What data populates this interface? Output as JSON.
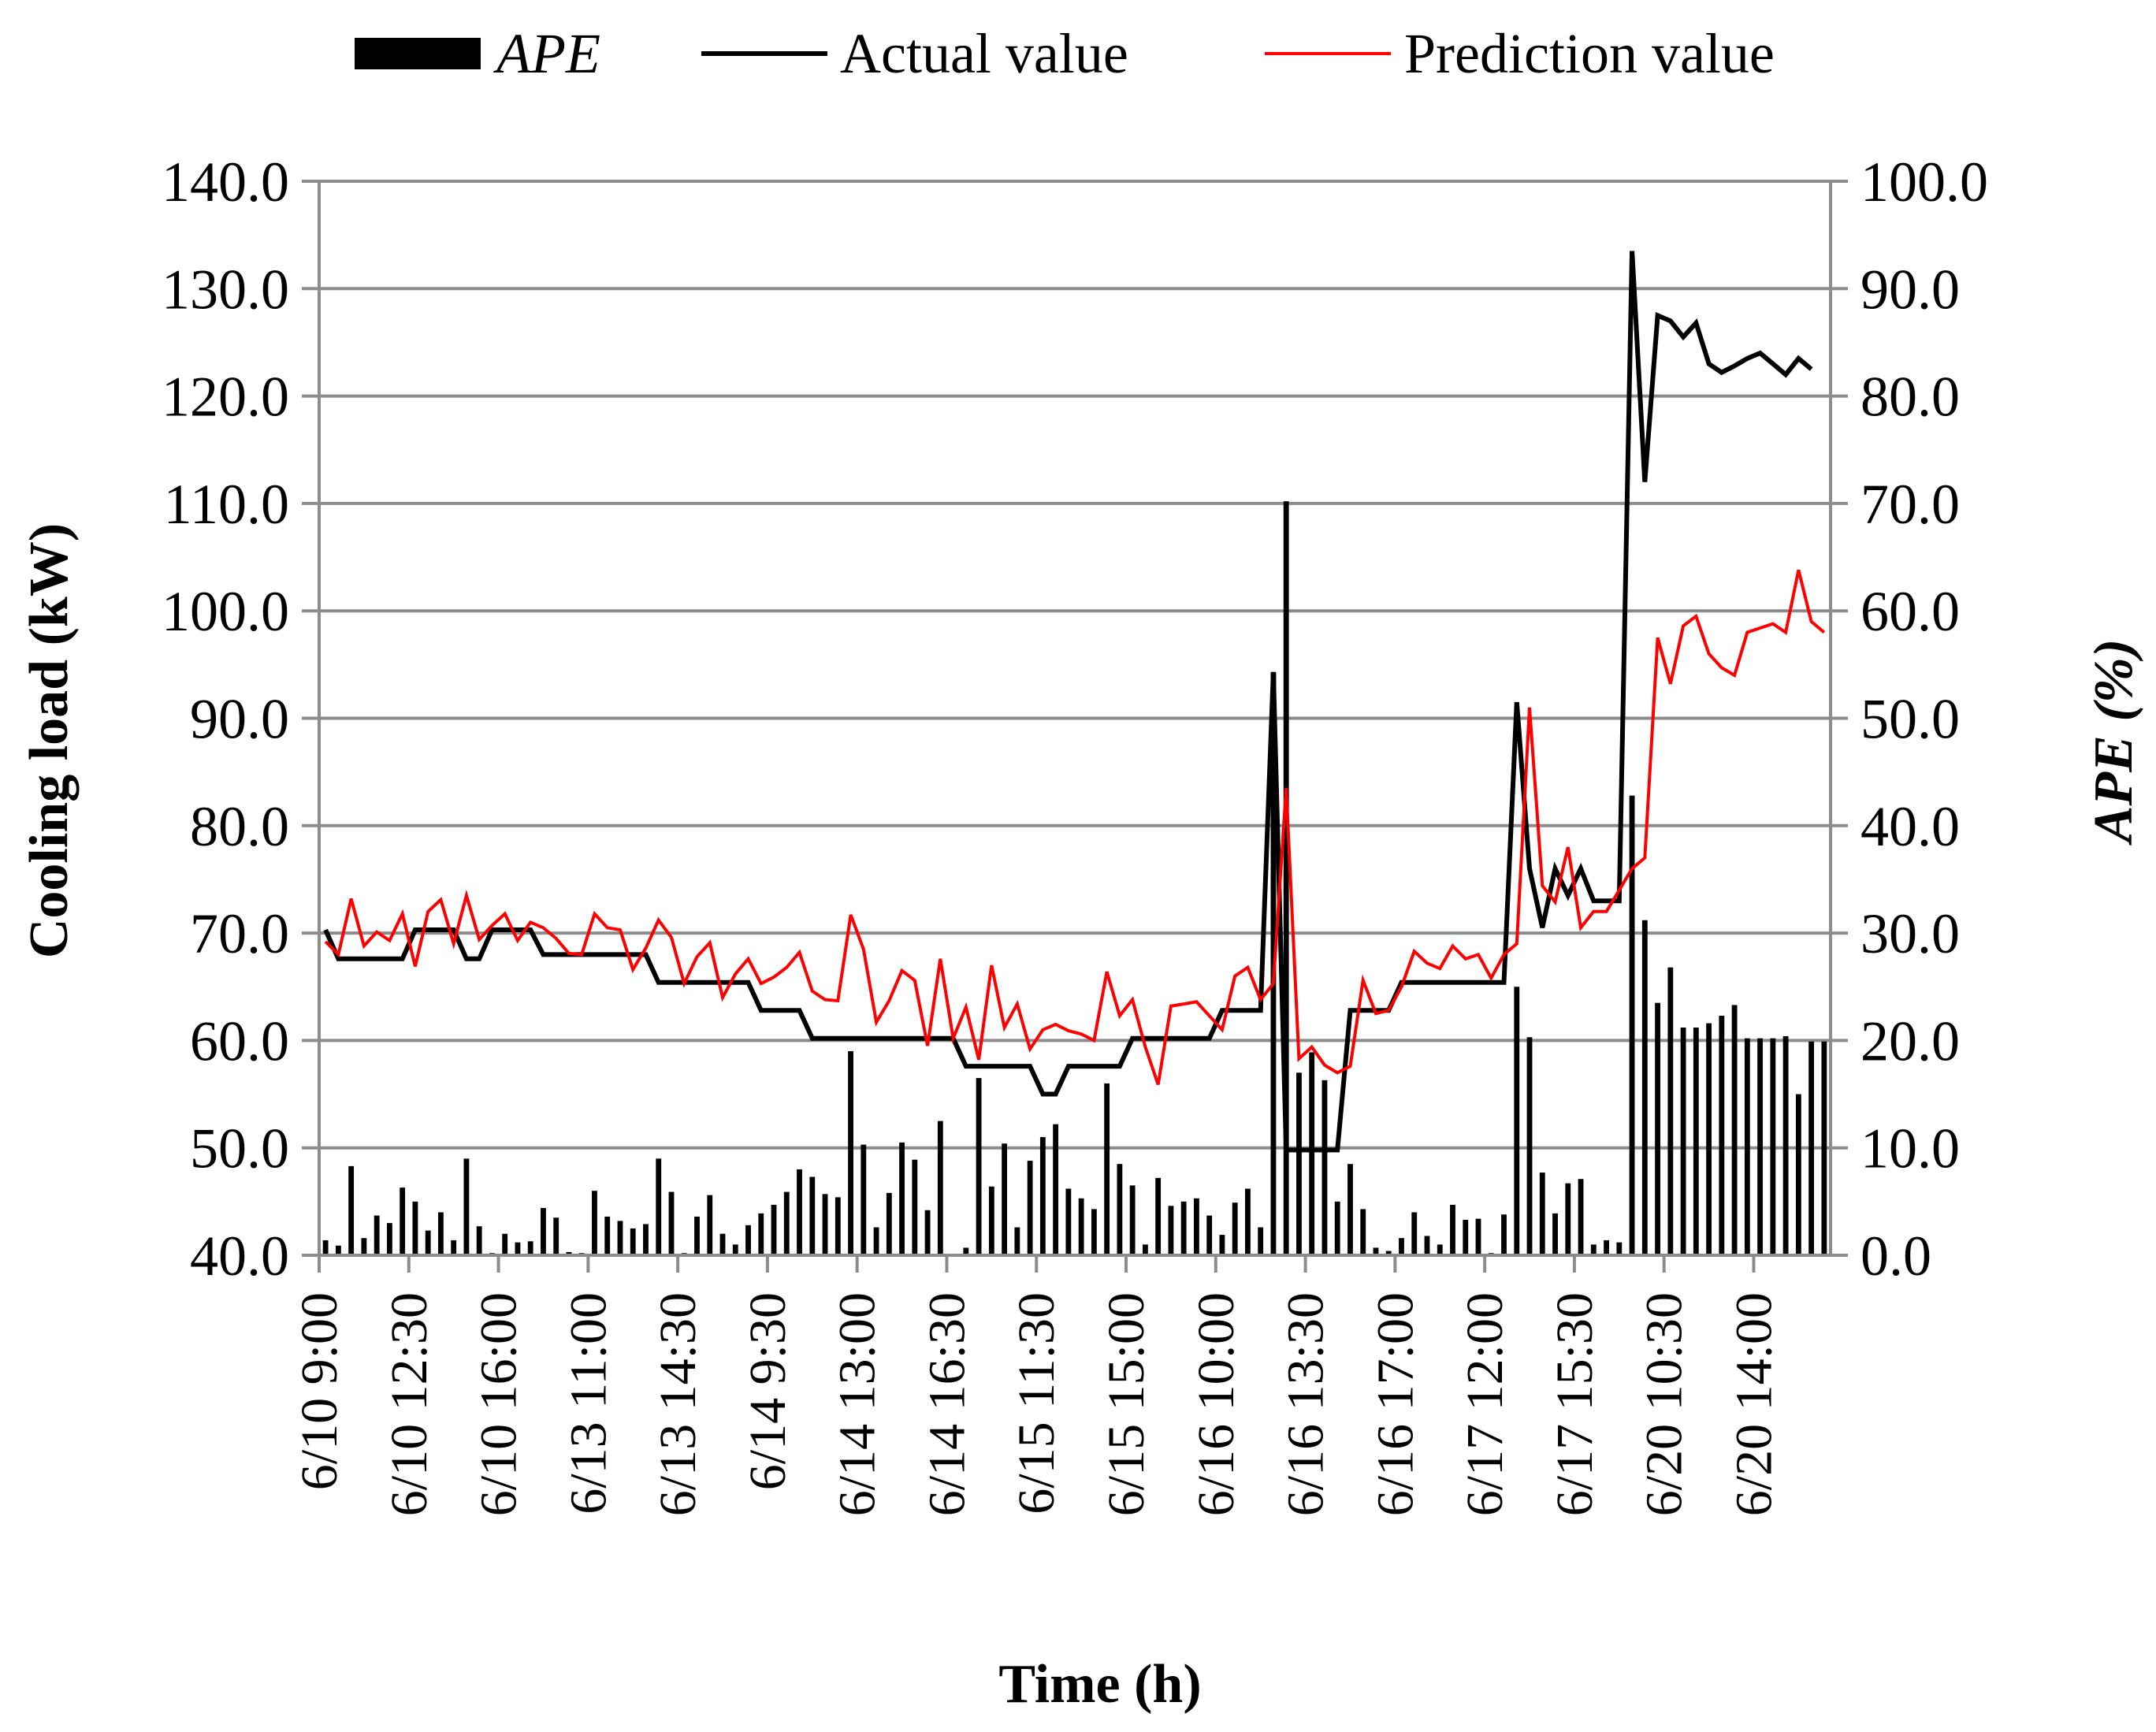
{
  "chart_data": {
    "type": "bar+line",
    "xlabel": "Time (h)",
    "ylabel": "Cooling load (kW)",
    "y2label": "APE (%)",
    "ylim": [
      40,
      140
    ],
    "y2lim": [
      0,
      100
    ],
    "yticks": [
      "40.0",
      "50.0",
      "60.0",
      "70.0",
      "80.0",
      "90.0",
      "100.0",
      "110.0",
      "120.0",
      "130.0",
      "140.0"
    ],
    "y2ticks": [
      "0.0",
      "10.0",
      "20.0",
      "30.0",
      "40.0",
      "50.0",
      "60.0",
      "70.0",
      "80.0",
      "90.0",
      "100.0"
    ],
    "grid": "horizontal",
    "legend_position": "top",
    "x_tick_labels": [
      "6/10 9:00",
      "6/10 12:30",
      "6/10 16:00",
      "6/13 11:00",
      "6/13 14:30",
      "6/14 9:30",
      "6/14 13:00",
      "6/14 16:30",
      "6/15 11:30",
      "6/15 15:00",
      "6/16 10:00",
      "6/16 13:30",
      "6/16 17:00",
      "6/17 12:00",
      "6/17 15:30",
      "6/20 10:30",
      "6/20 14:00"
    ],
    "x_tick_index": [
      0,
      7,
      14,
      21,
      28,
      35,
      42,
      49,
      56,
      63,
      70,
      77,
      84,
      91,
      98,
      105,
      112
    ],
    "series": [
      {
        "name": "APE",
        "type": "bar",
        "axis": "right",
        "color": "#000000",
        "values": [
          1.4,
          0.9,
          8.3,
          1.6,
          3.7,
          3.0,
          6.3,
          5.0,
          2.3,
          4.0,
          1.4,
          9.0,
          2.7,
          0.2,
          2.0,
          1.2,
          1.3,
          4.4,
          3.5,
          0.3,
          0.2,
          6.0,
          3.6,
          3.2,
          2.5,
          2.9,
          9.0,
          5.9,
          0.2,
          3.6,
          5.6,
          2.0,
          1.0,
          2.8,
          3.9,
          4.7,
          5.9,
          8.0,
          7.3,
          5.7,
          5.4,
          19.0,
          10.3,
          2.6,
          5.8,
          10.5,
          8.9,
          4.2,
          12.5,
          0.1,
          0.7,
          16.5,
          6.4,
          10.4,
          2.6,
          8.8,
          11.0,
          12.2,
          6.2,
          5.3,
          4.3,
          16.0,
          8.5,
          6.5,
          1.0,
          7.2,
          4.6,
          5.0,
          5.3,
          3.7,
          1.9,
          4.9,
          6.2,
          2.6,
          54.3,
          70.2,
          17.0,
          18.9,
          16.3,
          5.0,
          8.5,
          4.3,
          0.7,
          0.4,
          1.6,
          4.0,
          1.8,
          1.0,
          4.7,
          3.3,
          3.4,
          0.2,
          3.8,
          25.0,
          20.3,
          7.7,
          3.9,
          6.7,
          7.1,
          1.0,
          1.4,
          1.2,
          42.8,
          31.2,
          23.5,
          26.8,
          21.2,
          21.2,
          21.6,
          22.3,
          23.3,
          20.2,
          20.2,
          20.2,
          20.4,
          15.0,
          19.9,
          19.9
        ]
      },
      {
        "name": "Actual value",
        "type": "line",
        "axis": "left",
        "color": "#000000",
        "values": [
          70.3,
          67.6,
          67.6,
          67.6,
          67.6,
          67.6,
          67.6,
          70.3,
          70.3,
          70.3,
          70.3,
          67.6,
          67.6,
          70.3,
          70.3,
          70.3,
          70.3,
          68.0,
          68.0,
          68.0,
          68.0,
          68.0,
          68.0,
          68.0,
          68.0,
          68.0,
          65.4,
          65.4,
          65.4,
          65.4,
          65.4,
          65.4,
          65.4,
          65.4,
          62.8,
          62.8,
          62.8,
          62.8,
          60.2,
          60.2,
          60.2,
          60.2,
          60.2,
          60.2,
          60.2,
          60.2,
          60.2,
          60.2,
          60.2,
          60.2,
          57.6,
          57.6,
          57.6,
          57.6,
          57.6,
          57.6,
          55.0,
          55.0,
          57.6,
          57.6,
          57.6,
          57.6,
          57.6,
          60.2,
          60.2,
          60.2,
          60.2,
          60.2,
          60.2,
          60.2,
          62.8,
          62.8,
          62.8,
          62.8,
          94.3,
          49.8,
          49.8,
          49.8,
          49.8,
          49.8,
          62.8,
          62.8,
          62.8,
          62.8,
          65.4,
          65.4,
          65.4,
          65.4,
          65.4,
          65.4,
          65.4,
          65.4,
          65.4,
          91.5,
          76.0,
          70.5,
          76.0,
          73.5,
          76.0,
          73.0,
          73.0,
          73.0,
          133.5,
          112.0,
          127.5,
          127.0,
          125.5,
          126.8,
          123.0,
          122.2,
          122.8,
          123.5,
          124.0,
          123.0,
          122.0,
          123.5,
          122.5
        ]
      },
      {
        "name": "Prediction value",
        "type": "line",
        "axis": "left",
        "color": "#ff0000",
        "values": [
          69.2,
          68.0,
          73.2,
          68.8,
          70.1,
          69.3,
          71.8,
          66.9,
          72.0,
          73.1,
          69.0,
          73.5,
          69.4,
          70.7,
          71.8,
          69.3,
          71.0,
          70.5,
          69.5,
          68.1,
          68.0,
          71.8,
          70.5,
          70.3,
          66.6,
          68.6,
          71.2,
          69.6,
          65.3,
          67.8,
          69.1,
          64.0,
          66.2,
          67.6,
          65.3,
          65.9,
          66.8,
          68.2,
          64.6,
          63.8,
          63.7,
          71.7,
          68.5,
          61.7,
          63.7,
          66.5,
          65.6,
          59.5,
          67.6,
          60.2,
          63.1,
          58.2,
          67.0,
          61.2,
          63.4,
          59.2,
          61.0,
          61.5,
          60.9,
          60.6,
          60.0,
          66.4,
          62.3,
          63.8,
          59.4,
          55.9,
          63.2,
          63.4,
          63.6,
          62.3,
          61.0,
          66.0,
          66.8,
          63.8,
          65.3,
          83.5,
          58.3,
          59.4,
          57.7,
          57.0,
          57.6,
          65.6,
          62.5,
          62.8,
          65.0,
          68.3,
          67.2,
          66.7,
          68.8,
          67.6,
          68.0,
          65.8,
          68.0,
          69.0,
          91.0,
          74.4,
          72.9,
          78.0,
          70.5,
          72.0,
          72.0,
          74.0,
          76.0,
          77.0,
          97.5,
          93.2,
          98.6,
          99.5,
          96.0,
          94.7,
          94.0,
          98.0,
          98.4,
          98.8,
          98.0,
          103.8,
          99.0,
          98.0
        ]
      }
    ]
  }
}
